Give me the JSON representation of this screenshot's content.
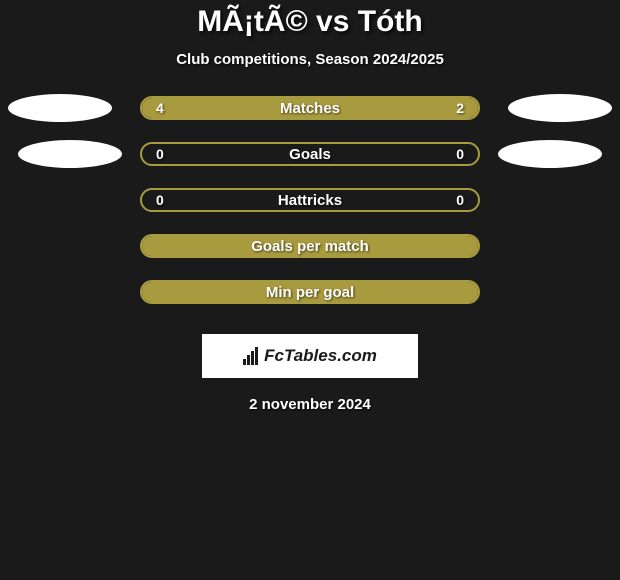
{
  "header": {
    "title": "MÃ¡tÃ© vs Tóth",
    "subtitle": "Club competitions, Season 2024/2025"
  },
  "stats": [
    {
      "label": "Matches",
      "left_value": "4",
      "right_value": "2",
      "left_fill_pct": 66,
      "right_fill_pct": 34,
      "fill_color": "#a89a3e",
      "show_ellipses": true,
      "ellipse_offset": "normal"
    },
    {
      "label": "Goals",
      "left_value": "0",
      "right_value": "0",
      "left_fill_pct": 0,
      "right_fill_pct": 0,
      "fill_color": "#a89a3e",
      "show_ellipses": true,
      "ellipse_offset": "inset"
    },
    {
      "label": "Hattricks",
      "left_value": "0",
      "right_value": "0",
      "left_fill_pct": 0,
      "right_fill_pct": 0,
      "fill_color": "#a89a3e",
      "show_ellipses": false
    },
    {
      "label": "Goals per match",
      "left_value": "",
      "right_value": "",
      "full_fill": true,
      "fill_color": "#a89a3e",
      "show_ellipses": false
    },
    {
      "label": "Min per goal",
      "left_value": "",
      "right_value": "",
      "full_fill": true,
      "fill_color": "#a89a3e",
      "show_ellipses": false
    }
  ],
  "footer": {
    "logo_text": "FcTables.com",
    "date": "2 november 2024"
  },
  "styling": {
    "background_color": "#1a1a1a",
    "bar_border_color": "#a89a3e",
    "bar_fill_color": "#a89a3e",
    "text_color": "#ffffff",
    "ellipse_color": "#ffffff",
    "logo_bg": "#ffffff",
    "logo_text_color": "#1a1a1a",
    "title_fontsize": 30,
    "subtitle_fontsize": 15,
    "label_fontsize": 15,
    "value_fontsize": 14
  }
}
